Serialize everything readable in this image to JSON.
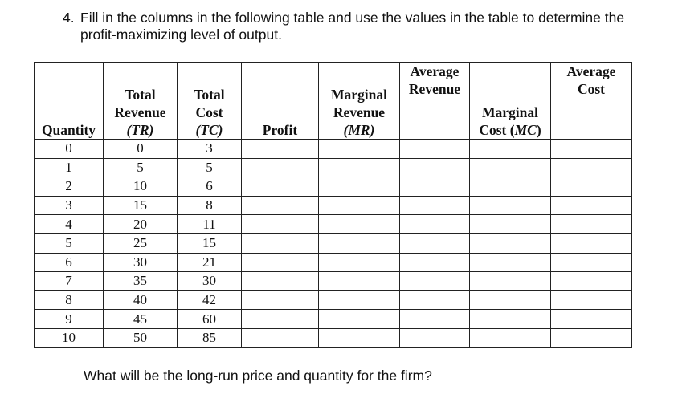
{
  "question": {
    "number": "4.",
    "line1": "Fill in the columns in the following table and use the values in the table to determine the",
    "line2": "profit-maximizing level of output."
  },
  "table": {
    "headers": {
      "quantity": "Quantity",
      "tr_l1": "Total",
      "tr_l2": "Revenue",
      "tr_l3": "(TR)",
      "tc_l1": "Total",
      "tc_l2": "Cost",
      "tc_l3": "(TC)",
      "profit": "Profit",
      "mr_l1": "Marginal",
      "mr_l2": "Revenue",
      "mr_l3": "(MR)",
      "ar_l1": "Average",
      "ar_l2": "Revenue",
      "mc_l1": "Marginal",
      "mc_l2a": "Cost (",
      "mc_l2b": "MC",
      "mc_l2c": ")",
      "ac_l1": "Average",
      "ac_l2": "Cost"
    },
    "rows": [
      {
        "q": "0",
        "tr": "0",
        "tc": "3"
      },
      {
        "q": "1",
        "tr": "5",
        "tc": "5"
      },
      {
        "q": "2",
        "tr": "10",
        "tc": "6"
      },
      {
        "q": "3",
        "tr": "15",
        "tc": "8"
      },
      {
        "q": "4",
        "tr": "20",
        "tc": "11"
      },
      {
        "q": "5",
        "tr": "25",
        "tc": "15"
      },
      {
        "q": "6",
        "tr": "30",
        "tc": "21"
      },
      {
        "q": "7",
        "tr": "35",
        "tc": "30"
      },
      {
        "q": "8",
        "tr": "40",
        "tc": "42"
      },
      {
        "q": "9",
        "tr": "45",
        "tc": "60"
      },
      {
        "q": "10",
        "tr": "50",
        "tc": "85"
      }
    ]
  },
  "closing_question": "What will be the long-run price and quantity for the firm?"
}
